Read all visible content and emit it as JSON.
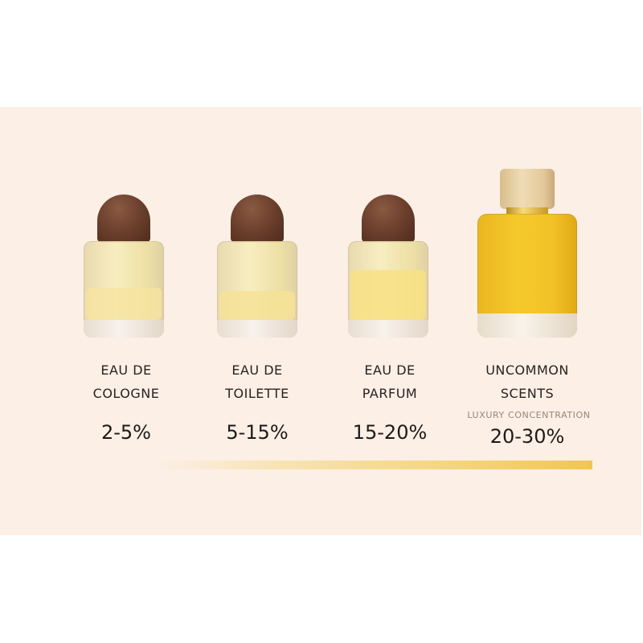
{
  "products": [
    {
      "name_line1": "EAU DE",
      "name_line2": "COLOGNE",
      "concentration": "2-5%",
      "liquid_color": "#f2e6a8",
      "fill_level": 0.4
    },
    {
      "name_line1": "EAU DE",
      "name_line2": "TOILETTE",
      "concentration": "5-15%",
      "liquid_color": "#f3e3a0",
      "fill_level": 0.45
    },
    {
      "name_line1": "EAU DE",
      "name_line2": "PARFUM",
      "concentration": "15-20%",
      "liquid_color": "#f6de8c",
      "fill_level": 0.6
    },
    {
      "name_line1": "UNCOMMON",
      "name_line2": "SCENTS",
      "subtitle": "LUXURY CONCENTRATION",
      "concentration": "20-30%",
      "liquid_color": "#f2c52a",
      "fill_level": 0.95
    }
  ],
  "colors": {
    "background": "#fbefe6",
    "bar_end": "#f2c651",
    "cap_wood_dark": "#6b3f2c",
    "cap_wood_light": "#e6cfa6"
  }
}
